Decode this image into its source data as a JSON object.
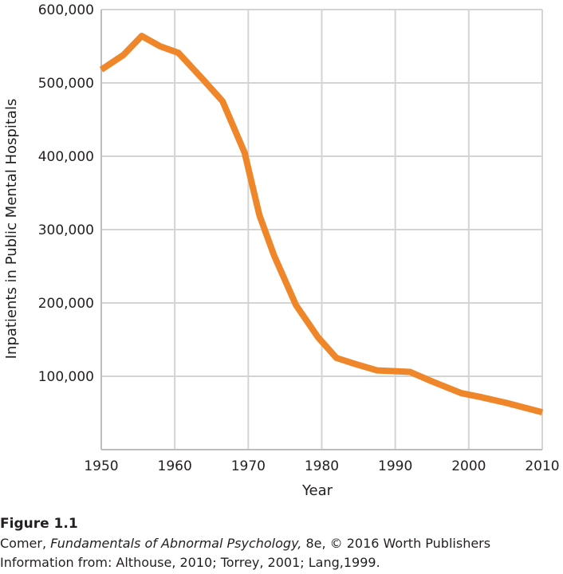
{
  "chart_data": {
    "type": "line",
    "xlabel": "Year",
    "ylabel": "Inpatients in Public Mental Hospitals",
    "xlim": [
      1950,
      2010
    ],
    "ylim": [
      0,
      600000
    ],
    "x_ticks": [
      "1950",
      "1960",
      "1970",
      "1980",
      "1990",
      "2000",
      "2010"
    ],
    "y_ticks": [
      "100,000",
      "200,000",
      "300,000",
      "400,000",
      "500,000",
      "600,000"
    ],
    "y_tick_values": [
      100000,
      200000,
      300000,
      400000,
      500000,
      600000
    ],
    "x_tick_values": [
      1950,
      1960,
      1970,
      1980,
      1990,
      2000,
      2010
    ],
    "grid": true,
    "series": [
      {
        "color": "#f0862a",
        "x": [
          1950,
          1953,
          1955.5,
          1958,
          1960.5,
          1964,
          1966.5,
          1969.5,
          1971.5,
          1973.5,
          1976.5,
          1979.5,
          1982,
          1984.5,
          1987.5,
          1990,
          1992,
          1995,
          1999,
          2001.5,
          2005,
          2010
        ],
        "y": [
          518000,
          538000,
          564000,
          550000,
          541000,
          503000,
          475000,
          405000,
          320000,
          265000,
          197000,
          153000,
          125000,
          117000,
          108000,
          107000,
          106000,
          93000,
          77000,
          72000,
          64000,
          51000
        ]
      }
    ]
  },
  "caption": {
    "figure_label": "Figure 1.1",
    "line1_prefix": "Comer, ",
    "line1_title": "Fundamentals of Abnormal Psychology,",
    "line1_suffix": " 8e, © 2016 Worth Publishers",
    "line2": "Information from: Althouse, 2010; Torrey, 2001; Lang,1999."
  }
}
